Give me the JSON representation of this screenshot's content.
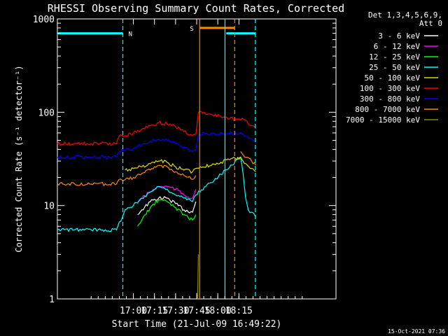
{
  "chart_data": {
    "type": "line",
    "title": "RHESSI Observing Summary Count Rates, Corrected",
    "xlabel": "Start Time (21-Jul-09 16:49:22)",
    "ylabel": "Corrected Count Rate (s⁻¹ detector⁻¹)",
    "yscale": "log",
    "ylim": [
      1,
      1000
    ],
    "xlim_minutes": [
      16.1,
      19.4
    ],
    "x_ticks": [
      {
        "h": 17.0,
        "label": "17:00"
      },
      {
        "h": 17.25,
        "label": "17:15"
      },
      {
        "h": 17.5,
        "label": "17:30"
      },
      {
        "h": 17.75,
        "label": "17:45"
      },
      {
        "h": 18.0,
        "label": "18:00"
      },
      {
        "h": 18.25,
        "label": "18:15"
      }
    ],
    "y_ticks": [
      {
        "v": 1,
        "label": "1"
      },
      {
        "v": 10,
        "label": "10"
      },
      {
        "v": 100,
        "label": "100"
      },
      {
        "v": 1000,
        "label": "1000"
      }
    ],
    "legend_header": [
      "Det 1,3,4,5,6,9,",
      "Att 0"
    ],
    "series": [
      {
        "name": "3 - 6 keV",
        "color": "#ffffff",
        "x": [
          16.83,
          16.95,
          17.0,
          17.05,
          17.1,
          17.2,
          17.3,
          17.4,
          17.5,
          17.6,
          17.7,
          17.74,
          17.76
        ],
        "values": [
          null,
          null,
          null,
          8,
          9,
          11,
          12,
          12,
          10.5,
          9,
          8.5,
          11,
          null
        ]
      },
      {
        "name": "6 - 12 keV",
        "color": "#ff00ff",
        "x": [
          16.83,
          16.95,
          17.0,
          17.05,
          17.1,
          17.2,
          17.3,
          17.4,
          17.5,
          17.6,
          17.7,
          17.74,
          18.4,
          18.5,
          18.6,
          18.7,
          18.8,
          18.9,
          19.0,
          19.1,
          19.2,
          19.3
        ],
        "values": [
          null,
          null,
          null,
          11,
          12,
          14,
          16,
          16,
          15,
          13,
          12,
          15,
          null,
          null,
          null,
          null,
          null,
          null,
          null,
          null,
          null,
          null
        ]
      },
      {
        "name": "12 - 25 keV",
        "color": "#00ff00",
        "x": [
          16.83,
          16.95,
          17.0,
          17.05,
          17.1,
          17.2,
          17.3,
          17.4,
          17.5,
          17.6,
          17.7,
          17.74
        ],
        "values": [
          null,
          null,
          null,
          6,
          7,
          9.5,
          11.5,
          11,
          9.5,
          8,
          7,
          8
        ]
      },
      {
        "name": "25 - 50 keV",
        "color": "#00ffff",
        "x": [
          16.1,
          16.3,
          16.5,
          16.8,
          16.9,
          17.0,
          17.1,
          17.2,
          17.3,
          17.4,
          17.5,
          17.6,
          17.7,
          17.74,
          18.27,
          18.3,
          18.33,
          18.36,
          18.4,
          18.45
        ],
        "values": [
          5.5,
          5.5,
          5.5,
          5.5,
          9,
          10,
          12,
          14,
          16,
          15,
          13,
          12,
          11,
          13,
          33,
          22,
          12,
          9,
          8.5,
          7.5
        ]
      },
      {
        "name": "50 - 100 keV",
        "color": "#dddd00",
        "x": [
          16.1,
          16.5,
          16.8,
          16.9,
          17.0,
          17.1,
          17.2,
          17.3,
          17.4,
          17.5,
          17.6,
          17.7,
          17.74,
          18.27,
          18.3,
          18.35,
          18.4,
          18.45
        ],
        "values": [
          null,
          null,
          null,
          24,
          25,
          26,
          28,
          30,
          29,
          26,
          24,
          23,
          25,
          33,
          30,
          27,
          25,
          23
        ]
      },
      {
        "name": "100 - 300 keV",
        "color": "#ff0000",
        "x": [
          16.1,
          16.5,
          16.8,
          16.83,
          17.0,
          17.1,
          17.2,
          17.3,
          17.4,
          17.5,
          17.6,
          17.7,
          17.74,
          17.77,
          18.27,
          18.3,
          18.35,
          18.4,
          18.45
        ],
        "values": [
          46,
          46,
          46,
          55,
          60,
          66,
          72,
          77,
          75,
          70,
          62,
          56,
          58,
          100,
          82,
          85,
          78,
          72,
          66
        ]
      },
      {
        "name": "300 - 800 keV",
        "color": "#0000ff",
        "x": [
          16.1,
          16.5,
          16.8,
          16.83,
          17.0,
          17.1,
          17.2,
          17.3,
          17.4,
          17.5,
          17.6,
          17.7,
          17.74,
          17.77,
          18.27,
          18.3,
          18.35,
          18.4,
          18.45
        ],
        "values": [
          33,
          33,
          33,
          38,
          41,
          45,
          49,
          51,
          50,
          46,
          42,
          38,
          40,
          58,
          60,
          58,
          55,
          52,
          48
        ]
      },
      {
        "name": "800 - 7000 keV",
        "color": "#ff8800",
        "x": [
          16.1,
          16.5,
          16.8,
          16.83,
          17.0,
          17.1,
          17.2,
          17.3,
          17.4,
          17.5,
          17.6,
          17.7,
          17.74,
          17.76,
          18.27,
          18.3,
          18.35,
          18.4,
          18.45
        ],
        "values": [
          17,
          17,
          17,
          19,
          20,
          22,
          24,
          27,
          26,
          23,
          21,
          19,
          21,
          null,
          38,
          35,
          33,
          30,
          27
        ]
      },
      {
        "name": "7000 - 15000 keV",
        "color": "#888800",
        "x": [
          17.76,
          17.77
        ],
        "values": [
          1,
          3
        ]
      }
    ],
    "annotations": [
      {
        "type": "night",
        "label": "N",
        "x_start": 16.1,
        "x_end": 16.875,
        "bar_value": 700
      },
      {
        "type": "night",
        "x_start": 18.1,
        "x_end": 18.45,
        "bar_value": 700
      },
      {
        "type": "saa",
        "label": "S",
        "x_start": 17.785,
        "x_end": 18.2,
        "bar_value": 800
      }
    ],
    "vlines": [
      {
        "h": 16.875,
        "color": "#00ffff",
        "style": "dashed"
      },
      {
        "h": 18.085,
        "color": "#00ffff",
        "style": "solid"
      },
      {
        "h": 18.445,
        "color": "#00ffff",
        "style": "dashed"
      },
      {
        "h": 17.785,
        "color": "#ff8800",
        "style": "solid"
      },
      {
        "h": 18.2,
        "color": "#ff8800",
        "style": "dashed"
      }
    ],
    "timestamp": "15-Oct-2021 07:36"
  }
}
